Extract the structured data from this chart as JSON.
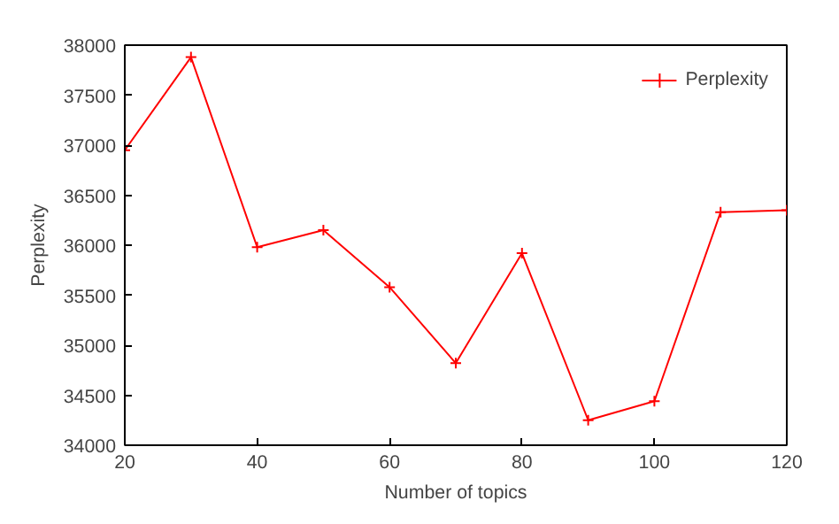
{
  "chart_data": {
    "type": "line",
    "xlabel": "Number of topics",
    "ylabel": "Perplexity",
    "x": [
      20,
      30,
      40,
      50,
      60,
      70,
      80,
      90,
      100,
      110,
      120
    ],
    "series": [
      {
        "name": "Perplexity",
        "color": "#ff0000",
        "values": [
          36950,
          37880,
          35980,
          36150,
          35580,
          34820,
          35920,
          34250,
          34440,
          36330,
          36350
        ]
      }
    ],
    "xlim": [
      20,
      120
    ],
    "xticks": [
      20,
      40,
      60,
      80,
      100,
      120
    ],
    "ylim": [
      34000,
      38000
    ],
    "yticks": [
      34000,
      34500,
      35000,
      35500,
      36000,
      36500,
      37000,
      37500,
      38000
    ],
    "grid": false,
    "legend": "top right",
    "marker": "cross",
    "line_style": "solid"
  }
}
